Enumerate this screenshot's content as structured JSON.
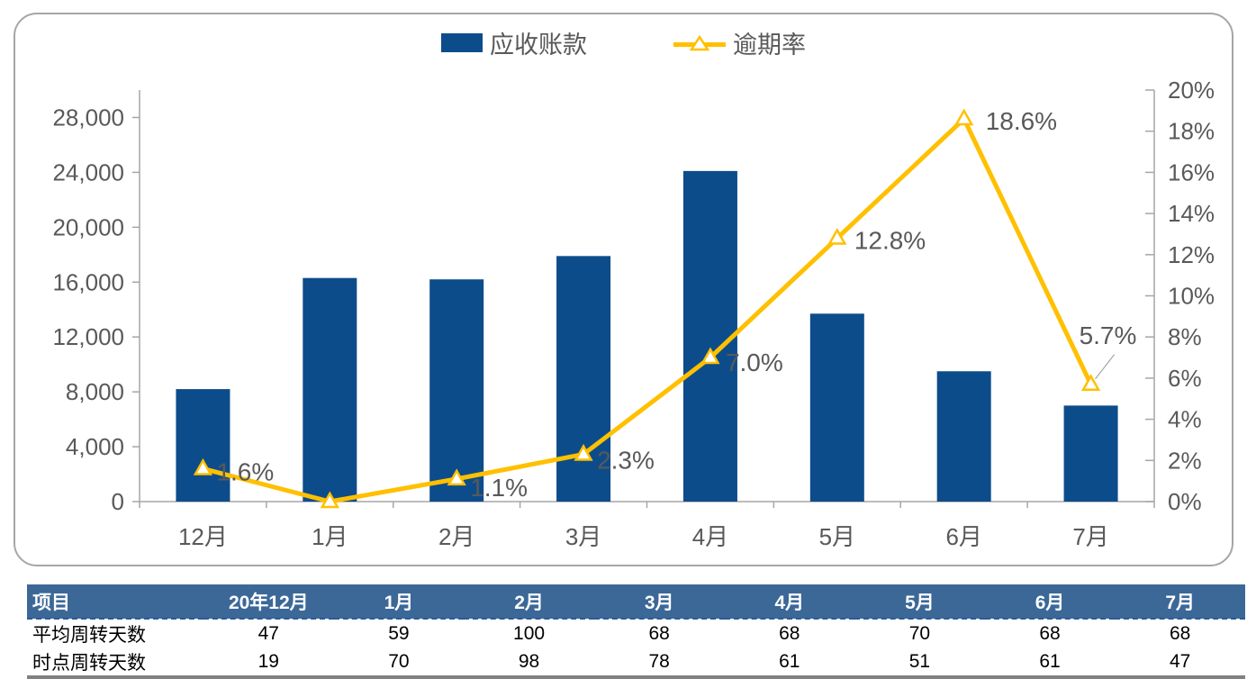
{
  "legend": {
    "bar_label": "应收账款",
    "line_label": "逾期率"
  },
  "chart_data": {
    "type": "combo-bar-line",
    "title": "",
    "categories": [
      "12月",
      "1月",
      "2月",
      "3月",
      "4月",
      "5月",
      "6月",
      "7月"
    ],
    "series": [
      {
        "name": "应收账款",
        "type": "bar",
        "axis": "left",
        "color": "#0D4C8B",
        "values": [
          8200,
          16300,
          16200,
          17900,
          24100,
          13700,
          9500,
          7000
        ]
      },
      {
        "name": "逾期率",
        "type": "line",
        "axis": "right",
        "color": "#FFC000",
        "values": [
          1.6,
          0.0,
          1.1,
          2.3,
          7.0,
          12.8,
          18.6,
          5.7
        ],
        "point_labels": [
          "1.6%",
          "",
          "1.1%",
          "2.3%",
          "7.0%",
          "12.8%",
          "18.6%",
          "5.7%"
        ]
      }
    ],
    "left_axis": {
      "min": 0,
      "max": 30000,
      "tick_step": 4000,
      "tick_labels": [
        "0",
        "4,000",
        "8,000",
        "12,000",
        "16,000",
        "20,000",
        "24,000",
        "28,000"
      ]
    },
    "right_axis": {
      "min": 0,
      "max": 20,
      "tick_step": 2,
      "tick_labels": [
        "0%",
        "2%",
        "4%",
        "6%",
        "8%",
        "10%",
        "12%",
        "14%",
        "16%",
        "18%",
        "20%"
      ]
    },
    "grid": false,
    "legend_position": "top"
  },
  "table": {
    "header": [
      "项目",
      "20年12月",
      "1月",
      "2月",
      "3月",
      "4月",
      "5月",
      "6月",
      "7月"
    ],
    "rows": [
      {
        "label": "平均周转天数",
        "values": [
          "47",
          "59",
          "100",
          "68",
          "68",
          "70",
          "68",
          "68"
        ]
      },
      {
        "label": "时点周转天数",
        "values": [
          "19",
          "70",
          "98",
          "78",
          "61",
          "51",
          "61",
          "47"
        ]
      }
    ]
  },
  "colors": {
    "bar": "#0D4C8B",
    "line": "#FFC000",
    "axis_text": "#595959",
    "data_label_text": "#595959",
    "axis_line": "#A6A6A6",
    "panel_border": "#A6A6A6",
    "leader_line": "#A6A6A6",
    "table_header_bg": "#3C6898",
    "table_header_text": "#FFFFFF",
    "header_divider": "#2D5A96",
    "table_bottom_border": "#808080"
  }
}
